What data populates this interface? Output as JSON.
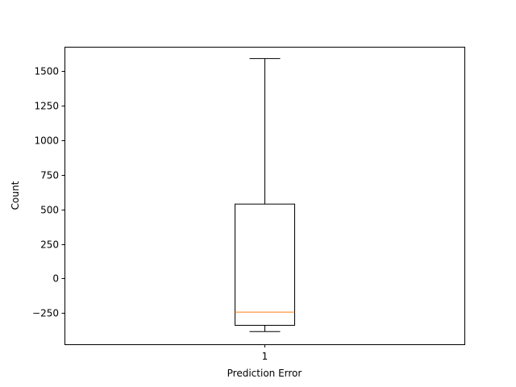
{
  "chart_data": {
    "type": "box",
    "title": "",
    "xlabel": "Prediction Error",
    "ylabel": "Count",
    "categories": [
      "1"
    ],
    "ylim": [
      -475,
      1675
    ],
    "yticks": [
      -250,
      0,
      250,
      500,
      750,
      1000,
      1250,
      1500
    ],
    "ytick_labels": [
      "−250",
      "0",
      "250",
      "500",
      "750",
      "1000",
      "1250",
      "1500"
    ],
    "boxes": [
      {
        "label": "1",
        "whisker_low": -383,
        "q1": -338,
        "median": -243,
        "q3": 538,
        "whisker_high": 1590
      }
    ],
    "grid": false,
    "colors": {
      "box": "#000000",
      "median": "#ff7f0e",
      "axes": "#000000"
    }
  }
}
